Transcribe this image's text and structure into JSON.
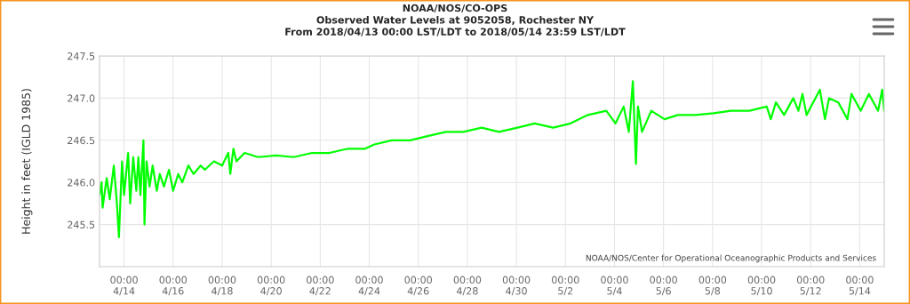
{
  "chart_data": {
    "type": "line",
    "title": "NOAA/NOS/CO-OPS",
    "subtitle": "Observed Water Levels at 9052058, Rochester NY\nFrom 2018/04/13 00:00 LST/LDT to 2018/05/14 23:59 LST/LDT",
    "ylabel": "Height in feet (IGLD 1985)",
    "annotations": [
      "NOAA/NOS/Center for Operational Oceanographic Products and Services"
    ],
    "x": [
      "2018-04-13T00:00",
      "2018-04-13T02:00",
      "2018-04-13T03:00",
      "2018-04-13T07:00",
      "2018-04-13T10:00",
      "2018-04-13T14:00",
      "2018-04-13T17:00",
      "2018-04-13T19:00",
      "2018-04-13T22:00",
      "2018-04-14T00:00",
      "2018-04-14T04:00",
      "2018-04-14T06:00",
      "2018-04-14T09:00",
      "2018-04-14T12:00",
      "2018-04-14T14:00",
      "2018-04-14T16:00",
      "2018-04-14T19:00",
      "2018-04-14T20:00",
      "2018-04-14T22:00",
      "2018-04-15T01:00",
      "2018-04-15T04:00",
      "2018-04-15T08:00",
      "2018-04-15T11:00",
      "2018-04-15T15:00",
      "2018-04-15T20:00",
      "2018-04-16T00:00",
      "2018-04-16T05:00",
      "2018-04-16T09:00",
      "2018-04-16T15:00",
      "2018-04-16T20:00",
      "2018-04-17T03:00",
      "2018-04-17T07:00",
      "2018-04-17T16:00",
      "2018-04-18T00:00",
      "2018-04-18T06:00",
      "2018-04-18T08:00",
      "2018-04-18T11:00",
      "2018-04-18T14:00",
      "2018-04-18T22:00",
      "2018-04-19T11:00",
      "2018-04-20T05:00",
      "2018-04-20T22:00",
      "2018-04-21T16:00",
      "2018-04-22T09:00",
      "2018-04-23T03:00",
      "2018-04-23T20:00",
      "2018-04-24T05:00",
      "2018-04-24T22:00",
      "2018-04-25T16:00",
      "2018-04-26T09:00",
      "2018-04-27T03:00",
      "2018-04-27T20:00",
      "2018-04-28T14:00",
      "2018-04-29T07:00",
      "2018-04-30T01:00",
      "2018-04-30T18:00",
      "2018-05-01T12:00",
      "2018-05-02T05:00",
      "2018-05-02T22:00",
      "2018-05-03T16:00",
      "2018-05-04T01:00",
      "2018-05-04T09:00",
      "2018-05-04T14:00",
      "2018-05-04T18:00",
      "2018-05-04T21:00",
      "2018-05-04T23:00",
      "2018-05-05T03:00",
      "2018-05-05T12:00",
      "2018-05-06T01:00",
      "2018-05-06T14:00",
      "2018-05-07T07:00",
      "2018-05-08T01:00",
      "2018-05-08T18:00",
      "2018-05-09T12:00",
      "2018-05-10T05:00",
      "2018-05-10T09:00",
      "2018-05-10T14:00",
      "2018-05-10T22:00",
      "2018-05-11T07:00",
      "2018-05-11T12:00",
      "2018-05-11T16:00",
      "2018-05-11T20:00",
      "2018-05-12T09:00",
      "2018-05-12T14:00",
      "2018-05-12T18:00",
      "2018-05-13T03:00",
      "2018-05-13T12:00",
      "2018-05-13T16:00",
      "2018-05-14T01:00",
      "2018-05-14T09:00",
      "2018-05-14T18:00",
      "2018-05-14T22:00",
      "2018-05-14T23:59"
    ],
    "series": [
      {
        "color": "#00ff00",
        "values": [
          245.85,
          246.0,
          245.7,
          246.05,
          245.8,
          246.2,
          245.75,
          245.35,
          246.25,
          245.85,
          246.35,
          245.75,
          246.3,
          245.9,
          246.3,
          245.85,
          246.5,
          245.5,
          246.25,
          245.95,
          246.2,
          245.9,
          246.1,
          245.95,
          246.15,
          245.9,
          246.1,
          246.0,
          246.2,
          246.1,
          246.2,
          246.15,
          246.25,
          246.2,
          246.35,
          246.1,
          246.4,
          246.25,
          246.35,
          246.3,
          246.32,
          246.3,
          246.35,
          246.35,
          246.4,
          246.4,
          246.45,
          246.5,
          246.5,
          246.55,
          246.6,
          246.6,
          246.65,
          246.6,
          246.65,
          246.7,
          246.65,
          246.7,
          246.8,
          246.85,
          246.7,
          246.9,
          246.6,
          247.2,
          246.22,
          246.9,
          246.6,
          246.85,
          246.75,
          246.8,
          246.8,
          246.82,
          246.85,
          246.85,
          246.9,
          246.75,
          246.95,
          246.8,
          247.0,
          246.85,
          247.05,
          246.8,
          247.1,
          246.75,
          247.0,
          246.95,
          246.75,
          247.05,
          246.85,
          247.05,
          246.85,
          247.1,
          246.85
        ]
      }
    ],
    "xlim": [
      "2018-04-13T00:00",
      "2018-05-15T00:00"
    ],
    "xticks": [
      {
        "value": "2018-04-14",
        "label": "00:00\n4/14"
      },
      {
        "value": "2018-04-16",
        "label": "00:00\n4/16"
      },
      {
        "value": "2018-04-18",
        "label": "00:00\n4/18"
      },
      {
        "value": "2018-04-20",
        "label": "00:00\n4/20"
      },
      {
        "value": "2018-04-22",
        "label": "00:00\n4/22"
      },
      {
        "value": "2018-04-24",
        "label": "00:00\n4/24"
      },
      {
        "value": "2018-04-26",
        "label": "00:00\n4/26"
      },
      {
        "value": "2018-04-28",
        "label": "00:00\n4/28"
      },
      {
        "value": "2018-04-30",
        "label": "00:00\n4/30"
      },
      {
        "value": "2018-05-02",
        "label": "00:00\n5/2"
      },
      {
        "value": "2018-05-04",
        "label": "00:00\n5/4"
      },
      {
        "value": "2018-05-06",
        "label": "00:00\n5/6"
      },
      {
        "value": "2018-05-08",
        "label": "00:00\n5/8"
      },
      {
        "value": "2018-05-10",
        "label": "00:00\n5/10"
      },
      {
        "value": "2018-05-12",
        "label": "00:00\n5/12"
      },
      {
        "value": "2018-05-14",
        "label": "00:00\n5/14"
      }
    ],
    "ylim": [
      245.0,
      247.5
    ],
    "yticks": [
      {
        "value": 245.5,
        "label": "245.5"
      },
      {
        "value": 246.0,
        "label": "246.0"
      },
      {
        "value": 246.5,
        "label": "246.5"
      },
      {
        "value": 247.0,
        "label": "247.0"
      },
      {
        "value": 247.5,
        "label": "247.5"
      }
    ],
    "grid": true,
    "marker": "none",
    "line_style": "solid"
  }
}
